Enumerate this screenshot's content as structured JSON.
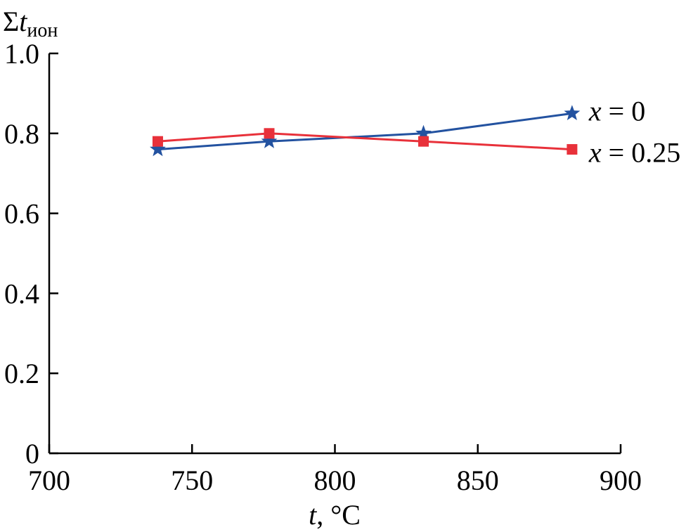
{
  "chart_data": {
    "type": "line",
    "ylabel_prefix": "Σ",
    "ylabel_var": "t",
    "ylabel_sub": "ион",
    "xlabel_var": "t",
    "xlabel_unit": ", °C",
    "xlim": [
      700,
      900
    ],
    "ylim": [
      0,
      1.0
    ],
    "xticks": [
      700,
      750,
      800,
      850,
      900
    ],
    "xtick_labels": [
      "700",
      "750",
      "800",
      "850",
      "900"
    ],
    "yticks": [
      0,
      0.2,
      0.4,
      0.6,
      0.8,
      1.0
    ],
    "ytick_labels": [
      "0",
      "0.2",
      "0.4",
      "0.6",
      "0.8",
      "1.0"
    ],
    "grid": false,
    "series": [
      {
        "name_var": "x",
        "name_rest": " = 0",
        "marker": "star",
        "color": "#2352a0",
        "x": [
          738,
          777,
          831,
          883
        ],
        "y": [
          0.76,
          0.78,
          0.8,
          0.85
        ]
      },
      {
        "name_var": "x",
        "name_rest": " = 0.25",
        "marker": "square",
        "color": "#e8313a",
        "x": [
          738,
          777,
          831,
          883
        ],
        "y": [
          0.78,
          0.8,
          0.78,
          0.76
        ]
      }
    ]
  }
}
